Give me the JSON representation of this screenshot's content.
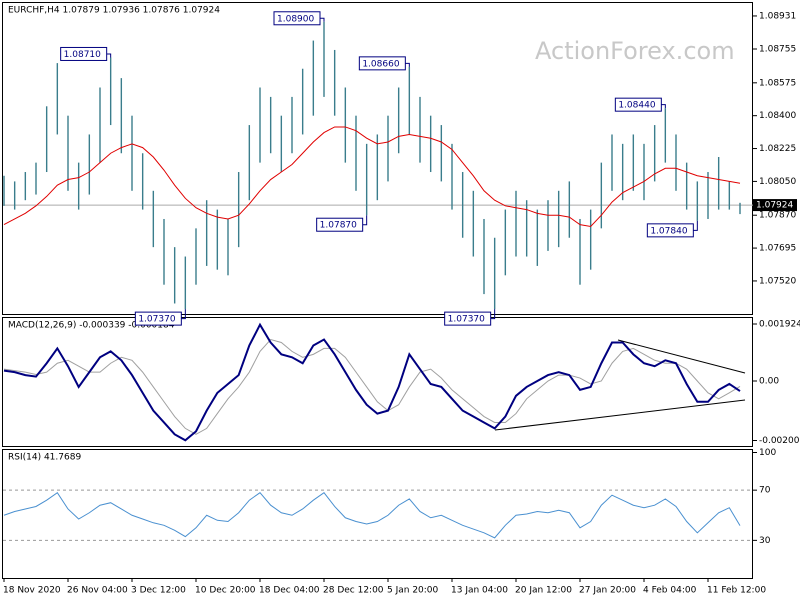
{
  "chart_data": [
    {
      "type": "ohlc",
      "title": "EURCHF,H4 1.07879 1.07936 1.07876 1.07924",
      "watermark": "ActionForex.com",
      "color": "#3a7d8c",
      "high": [
        1.0808,
        1.0805,
        1.081,
        1.0815,
        1.0845,
        1.0868,
        1.084,
        1.0815,
        1.083,
        1.0855,
        1.0871,
        1.086,
        1.084,
        1.082,
        1.08,
        1.0785,
        1.077,
        1.0765,
        1.078,
        1.0795,
        1.079,
        1.0785,
        1.081,
        1.0835,
        1.0855,
        1.085,
        1.084,
        1.085,
        1.0865,
        1.088,
        1.089,
        1.0875,
        1.0855,
        1.084,
        1.0825,
        1.083,
        1.084,
        1.0855,
        1.0866,
        1.085,
        1.084,
        1.0835,
        1.0825,
        1.081,
        1.08,
        1.0785,
        1.0775,
        1.079,
        1.08,
        1.0795,
        1.079,
        1.0795,
        1.08,
        1.0805,
        1.0785,
        1.079,
        1.0815,
        1.083,
        1.0825,
        1.083,
        1.0825,
        1.0835,
        1.0844,
        1.083,
        1.0815,
        1.0805,
        1.081,
        1.0818,
        1.0805,
        1.07936
      ],
      "low": [
        1.0792,
        1.079,
        1.0795,
        1.0798,
        1.081,
        1.083,
        1.08,
        1.079,
        1.0798,
        1.0815,
        1.0835,
        1.082,
        1.08,
        1.079,
        1.077,
        1.075,
        1.074,
        1.0737,
        1.075,
        1.076,
        1.0758,
        1.0755,
        1.077,
        1.0795,
        1.0815,
        1.082,
        1.081,
        1.082,
        1.083,
        1.084,
        1.085,
        1.084,
        1.0815,
        1.08,
        1.0787,
        1.0795,
        1.0805,
        1.082,
        1.083,
        1.0815,
        1.081,
        1.0805,
        1.079,
        1.0775,
        1.0765,
        1.0745,
        1.0737,
        1.0755,
        1.0765,
        1.0765,
        1.076,
        1.0768,
        1.077,
        1.0775,
        1.075,
        1.0758,
        1.078,
        1.08,
        1.0795,
        1.08,
        1.0795,
        1.0805,
        1.0815,
        1.08,
        1.079,
        1.0784,
        1.0785,
        1.079,
        1.079,
        1.07876
      ],
      "lines": [
        {
          "color": "#e00000",
          "values": [
            1.0782,
            1.0785,
            1.0788,
            1.0792,
            1.0797,
            1.0803,
            1.0806,
            1.0807,
            1.081,
            1.0815,
            1.082,
            1.0823,
            1.0825,
            1.0823,
            1.0818,
            1.0811,
            1.0803,
            1.0796,
            1.0791,
            1.0788,
            1.0786,
            1.0785,
            1.0787,
            1.0793,
            1.08,
            1.0806,
            1.081,
            1.0814,
            1.082,
            1.0826,
            1.0831,
            1.0834,
            1.0834,
            1.0832,
            1.0828,
            1.0825,
            1.0826,
            1.0829,
            1.083,
            1.0829,
            1.0828,
            1.0826,
            1.0822,
            1.0815,
            1.0808,
            1.08,
            1.0795,
            1.0792,
            1.0791,
            1.079,
            1.0788,
            1.0787,
            1.0787,
            1.0786,
            1.0782,
            1.0781,
            1.0787,
            1.0794,
            1.0799,
            1.0802,
            1.0805,
            1.0809,
            1.0812,
            1.0812,
            1.081,
            1.0808,
            1.0807,
            1.0806,
            1.0805,
            1.0804
          ]
        }
      ],
      "last": 1.07924,
      "annotations": [
        {
          "value": 1.0871,
          "label": "1.08710"
        },
        {
          "value": 1.089,
          "label": "1.08900"
        },
        {
          "value": 1.0866,
          "label": "1.08660"
        },
        {
          "value": 1.0844,
          "label": "1.08440"
        },
        {
          "value": 1.0737,
          "label": "1.07370"
        },
        {
          "value": 1.0787,
          "label": "1.07870"
        },
        {
          "value": 1.0737,
          "label": "1.07370"
        },
        {
          "value": 1.0784,
          "label": "1.07840"
        }
      ],
      "ylim": [
        1.07344,
        1.09
      ],
      "yticks": [
        1.08931,
        1.08755,
        1.08575,
        {
          "value": 1.084,
          "label": "1.08400"
        },
        1.08225,
        {
          "value": 1.0805,
          "label": "1.08050"
        },
        {
          "value": 1.0787,
          "label": "1.07870"
        },
        1.07695,
        {
          "value": 1.0752,
          "label": "1.07520"
        }
      ]
    },
    {
      "type": "line",
      "title": "MACD(12,26,9) -0.000339 -0.000184",
      "series": [
        {
          "color": "#000080",
          "width": 2,
          "values": [
            0.00035,
            0.0003,
            0.0002,
            0.00015,
            0.0006,
            0.0011,
            0.0005,
            -0.0002,
            0.0003,
            0.0008,
            0.001,
            0.0007,
            0.0002,
            -0.0004,
            -0.001,
            -0.0014,
            -0.0018,
            -0.002,
            -0.0017,
            -0.001,
            -0.0004,
            -0.0001,
            0.0002,
            0.0012,
            0.0019,
            0.0013,
            0.0009,
            0.0008,
            0.0006,
            0.0012,
            0.0014,
            0.0009,
            0.0003,
            -0.0003,
            -0.0008,
            -0.0011,
            -0.001,
            -0.0002,
            0.0009,
            0.0004,
            -0.0001,
            -0.0002,
            -0.0006,
            -0.001,
            -0.0012,
            -0.0014,
            -0.0016,
            -0.0012,
            -0.0005,
            -0.0002,
            0,
            0.0002,
            0.0003,
            0.0002,
            -0.0003,
            -0.0002,
            0.0006,
            0.0013,
            0.0013,
            0.0009,
            0.0006,
            0.0005,
            0.0007,
            0.0006,
            -0.0001,
            -0.0007,
            -0.0007,
            -0.0003,
            -0.0001,
            -0.000339
          ]
        },
        {
          "color": "#a0a0a0",
          "width": 1,
          "values": [
            0.0004,
            0.00035,
            0.0003,
            0.00022,
            0.0003,
            0.0006,
            0.0007,
            0.0005,
            0.0003,
            0.0003,
            0.0006,
            0.0008,
            0.0007,
            0.0003,
            -0.0002,
            -0.0007,
            -0.0012,
            -0.0016,
            -0.0018,
            -0.0016,
            -0.0011,
            -0.0006,
            -0.0002,
            0.0003,
            0.001,
            0.0014,
            0.0013,
            0.001,
            0.0008,
            0.0009,
            0.0011,
            0.0011,
            0.0008,
            0.0003,
            -0.0002,
            -0.0007,
            -0.001,
            -0.0008,
            -0.0002,
            0.0003,
            0.0004,
            0.0001,
            -0.0003,
            -0.0006,
            -0.0009,
            -0.0012,
            -0.0014,
            -0.0014,
            -0.0011,
            -0.0006,
            -0.0003,
            0,
            0.0002,
            0.0002,
            0.0001,
            -0.0001,
            0,
            0.0006,
            0.001,
            0.0011,
            0.0009,
            0.0007,
            0.0006,
            0.0006,
            0.0004,
            0,
            -0.0004,
            -0.0006,
            -0.0004,
            -0.000184
          ]
        }
      ],
      "ylim": [
        -0.002194,
        0.002127
      ],
      "yticks": [
        0.001924,
        {
          "value": 0,
          "label": "0.00"
        },
        -0.002008
      ]
    },
    {
      "type": "line",
      "title": "RSI(14) 41.7689",
      "series": [
        {
          "color": "#4a90d0",
          "width": 1,
          "values": [
            50,
            53,
            55,
            57,
            62,
            68,
            55,
            47,
            52,
            58,
            60,
            55,
            50,
            47,
            44,
            42,
            38,
            33,
            40,
            50,
            46,
            45,
            52,
            62,
            68,
            58,
            52,
            50,
            55,
            62,
            68,
            57,
            48,
            45,
            43,
            45,
            50,
            58,
            63,
            53,
            48,
            50,
            46,
            42,
            39,
            36,
            32,
            42,
            50,
            51,
            53,
            52,
            54,
            52,
            40,
            45,
            58,
            66,
            62,
            58,
            56,
            58,
            63,
            57,
            45,
            36,
            44,
            52,
            56,
            41.7689
          ]
        }
      ],
      "ylim": [
        0,
        102
      ],
      "yticks": [
        100,
        70,
        30
      ],
      "levels": [
        70,
        30
      ],
      "categories": [
        "18 Nov 2020",
        null,
        null,
        null,
        null,
        null,
        "26 Nov 04:00",
        null,
        null,
        null,
        null,
        null,
        "3 Dec 12:00",
        null,
        null,
        null,
        null,
        null,
        "10 Dec 20:00",
        null,
        null,
        null,
        null,
        null,
        "18 Dec 04:00",
        null,
        null,
        null,
        null,
        null,
        "28 Dec 12:00",
        null,
        null,
        null,
        null,
        null,
        "5 Jan 20:00",
        null,
        null,
        null,
        null,
        null,
        "13 Jan 04:00",
        null,
        null,
        null,
        null,
        null,
        "20 Jan 12:00",
        null,
        null,
        null,
        null,
        null,
        "27 Jan 20:00",
        null,
        null,
        null,
        null,
        null,
        "4 Feb 04:00",
        null,
        null,
        null,
        null,
        null,
        "11 Feb 12:00",
        null,
        null,
        null
      ]
    }
  ]
}
